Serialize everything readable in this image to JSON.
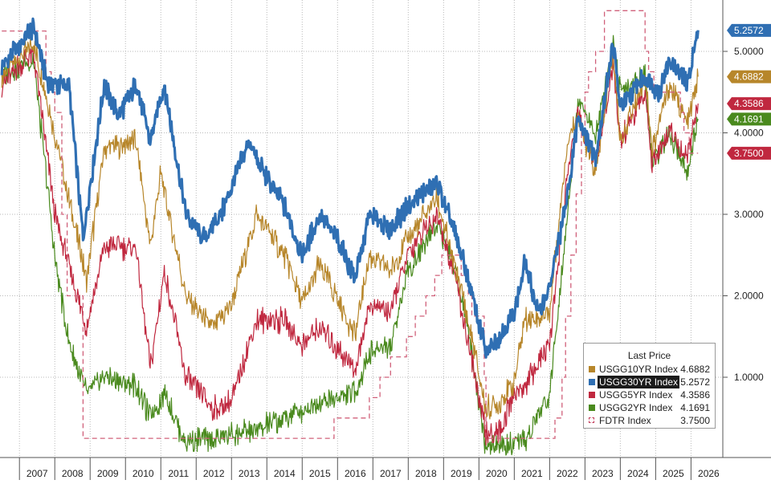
{
  "chart_data": {
    "type": "line",
    "y_ticks": [
      "1.0000",
      "2.0000",
      "3.0000",
      "4.0000",
      "5.0000"
    ],
    "ylim": [
      0,
      5.6
    ],
    "x_ticks": [
      "2007",
      "2008",
      "2009",
      "2010",
      "2011",
      "2012",
      "2013",
      "2014",
      "2015",
      "2016",
      "2017",
      "2018",
      "2019",
      "2020",
      "2021",
      "2022",
      "2023",
      "2024",
      "2025",
      "2026"
    ],
    "grid": true,
    "legend_title": "Last Price",
    "legend_position": "bottom-right",
    "series": [
      {
        "name": "USGG10YR Index",
        "last": "4.6882",
        "color": "#b7862a",
        "style": "solid",
        "x": [
          2006.5,
          2007.4,
          2008.0,
          2008.9,
          2009.4,
          2010.3,
          2010.7,
          2011.0,
          2011.7,
          2012.5,
          2013.0,
          2013.7,
          2014.5,
          2015.0,
          2015.5,
          2016.5,
          2016.9,
          2017.5,
          2018.0,
          2018.8,
          2019.3,
          2019.7,
          2020.2,
          2020.6,
          2021.0,
          2021.3,
          2022.0,
          2022.5,
          2022.8,
          2023.3,
          2023.8,
          2024.0,
          2024.7,
          2024.9,
          2025.4,
          2025.9,
          2026.2
        ],
        "values": [
          4.7,
          5.1,
          4.0,
          2.2,
          3.8,
          3.9,
          2.6,
          3.5,
          2.0,
          1.6,
          1.9,
          3.0,
          2.5,
          1.9,
          2.4,
          1.5,
          2.5,
          2.3,
          2.7,
          3.2,
          2.4,
          1.7,
          0.6,
          0.7,
          0.95,
          1.7,
          1.8,
          3.9,
          4.2,
          3.5,
          5.0,
          3.9,
          4.7,
          3.8,
          4.6,
          4.1,
          4.69
        ]
      },
      {
        "name": "USGG30YR Index",
        "last": "5.2572",
        "color": "#2f6fb3",
        "style": "solid",
        "highlight": true,
        "x": [
          2006.5,
          2007.4,
          2007.8,
          2008.4,
          2008.8,
          2009.4,
          2009.8,
          2010.3,
          2010.7,
          2011.1,
          2011.7,
          2012.2,
          2012.7,
          2013.5,
          2013.8,
          2014.5,
          2015.0,
          2015.5,
          2016.0,
          2016.5,
          2016.9,
          2017.5,
          2018.0,
          2018.8,
          2019.3,
          2019.7,
          2020.2,
          2020.6,
          2021.0,
          2021.3,
          2021.7,
          2022.0,
          2022.5,
          2022.8,
          2023.3,
          2023.8,
          2024.0,
          2024.7,
          2025.1,
          2025.4,
          2025.9,
          2026.2
        ],
        "values": [
          4.8,
          5.3,
          4.6,
          4.6,
          2.7,
          4.6,
          4.2,
          4.6,
          3.9,
          4.6,
          3.0,
          2.7,
          3.0,
          3.9,
          3.6,
          3.1,
          2.5,
          3.0,
          2.7,
          2.2,
          3.0,
          2.8,
          3.1,
          3.4,
          2.8,
          2.2,
          1.3,
          1.5,
          1.8,
          2.4,
          1.8,
          2.1,
          3.2,
          4.2,
          3.7,
          5.1,
          4.3,
          4.7,
          4.5,
          4.9,
          4.6,
          5.26
        ]
      },
      {
        "name": "USGG5YR Index",
        "last": "4.3586",
        "color": "#c0283f",
        "style": "solid",
        "x": [
          2006.5,
          2007.4,
          2008.0,
          2008.9,
          2009.4,
          2010.3,
          2010.7,
          2011.1,
          2011.7,
          2012.5,
          2013.0,
          2013.7,
          2014.5,
          2015.0,
          2015.5,
          2016.5,
          2016.9,
          2017.5,
          2018.0,
          2018.8,
          2019.3,
          2019.7,
          2020.2,
          2020.6,
          2021.0,
          2021.3,
          2022.0,
          2022.5,
          2022.8,
          2023.3,
          2023.8,
          2024.0,
          2024.7,
          2024.9,
          2025.4,
          2025.9,
          2026.2
        ],
        "values": [
          4.6,
          5.0,
          3.0,
          1.6,
          2.6,
          2.6,
          1.1,
          2.3,
          1.0,
          0.6,
          0.7,
          1.7,
          1.7,
          1.4,
          1.6,
          1.1,
          1.9,
          1.8,
          2.5,
          3.0,
          2.3,
          1.4,
          0.3,
          0.35,
          0.8,
          0.9,
          1.4,
          3.5,
          4.2,
          3.6,
          4.8,
          3.9,
          4.5,
          3.6,
          4.0,
          3.7,
          4.36
        ]
      },
      {
        "name": "USGG2YR Index",
        "last": "4.1691",
        "color": "#4a8a1e",
        "style": "solid",
        "x": [
          2006.5,
          2007.4,
          2008.0,
          2008.4,
          2008.9,
          2009.4,
          2010.3,
          2010.7,
          2011.1,
          2011.7,
          2012.5,
          2013.0,
          2013.7,
          2014.5,
          2015.0,
          2015.5,
          2016.5,
          2016.9,
          2017.5,
          2018.0,
          2018.8,
          2019.3,
          2019.7,
          2020.2,
          2020.6,
          2021.0,
          2021.3,
          2022.0,
          2022.5,
          2022.8,
          2023.3,
          2023.8,
          2024.0,
          2024.7,
          2024.9,
          2025.4,
          2025.9,
          2026.2
        ],
        "values": [
          4.7,
          4.9,
          2.5,
          1.4,
          0.8,
          1.0,
          0.9,
          0.5,
          0.8,
          0.2,
          0.25,
          0.3,
          0.35,
          0.5,
          0.6,
          0.7,
          0.8,
          1.3,
          1.4,
          2.3,
          2.9,
          2.4,
          1.6,
          0.1,
          0.15,
          0.15,
          0.2,
          0.8,
          3.0,
          4.4,
          4.0,
          5.1,
          4.5,
          4.7,
          3.6,
          4.0,
          3.5,
          4.17
        ]
      },
      {
        "name": "FDTR Index",
        "last": "3.7500",
        "color": "#d0607a",
        "style": "dashed",
        "step": true,
        "x": [
          2006.5,
          2007.6,
          2007.75,
          2007.9,
          2008.0,
          2008.2,
          2008.35,
          2008.8,
          2015.9,
          2016.9,
          2017.2,
          2017.5,
          2017.95,
          2018.2,
          2018.5,
          2018.75,
          2018.95,
          2019.5,
          2019.7,
          2019.8,
          2020.15,
          2020.2,
          2022.15,
          2022.35,
          2022.45,
          2022.6,
          2022.75,
          2022.9,
          2023.0,
          2023.1,
          2023.3,
          2023.55,
          2024.7,
          2024.8,
          2024.95,
          2025.7,
          2025.8,
          2025.95,
          2026.2
        ],
        "values": [
          5.25,
          5.25,
          4.75,
          4.5,
          4.25,
          3.0,
          2.0,
          0.25,
          0.5,
          0.75,
          1.0,
          1.25,
          1.5,
          1.75,
          2.0,
          2.25,
          2.5,
          2.25,
          2.0,
          1.75,
          1.0,
          0.25,
          0.5,
          1.0,
          1.75,
          2.5,
          3.25,
          4.0,
          4.5,
          4.75,
          5.0,
          5.5,
          5.0,
          4.75,
          4.5,
          4.25,
          4.0,
          3.75,
          3.75
        ]
      }
    ]
  }
}
